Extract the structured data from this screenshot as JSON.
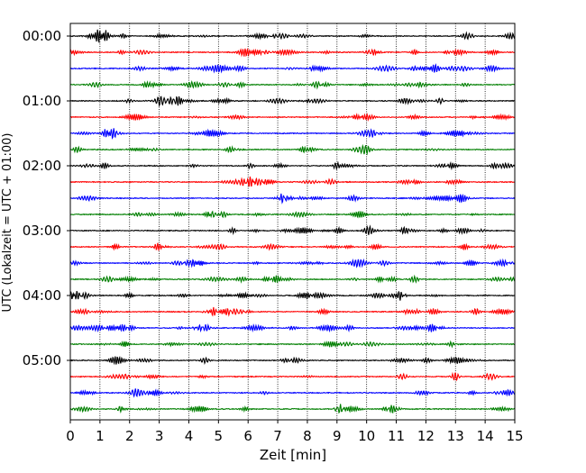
{
  "chart_data": {
    "type": "line",
    "title": "",
    "xlabel": "Zeit  [min]",
    "ylabel": "UTC (Lokalzeit = UTC + 01:00)",
    "xlim": [
      0,
      15
    ],
    "x_ticks": [
      0,
      1,
      2,
      3,
      4,
      5,
      6,
      7,
      8,
      9,
      10,
      11,
      12,
      13,
      14,
      15
    ],
    "y_ticks": [
      "00:00",
      "01:00",
      "02:00",
      "03:00",
      "04:00",
      "05:00"
    ],
    "grid": "vertical dotted at each minute",
    "rows_per_hour": 4,
    "row_interval_min": 15,
    "row_colors": [
      "#000000",
      "#ff0000",
      "#0000ff",
      "#007f00"
    ],
    "row_count": 24,
    "legend": "none"
  }
}
